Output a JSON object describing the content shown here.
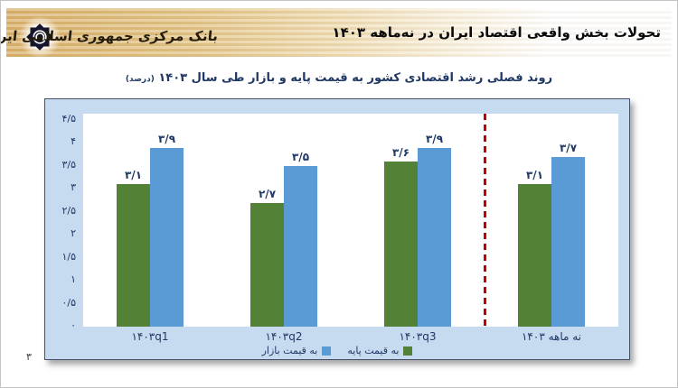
{
  "page": {
    "number": "۳"
  },
  "header": {
    "title": "تحولات بخش واقعی اقتصاد ایران در نه‌ماهه ۱۴۰۳",
    "bank_name": "بانک مرکزی جمهوری اسلامی ایران"
  },
  "chart_data": {
    "type": "bar",
    "title": "روند فصلی رشد اقتصادی کشور به قیمت پایه و بازار طی سال ۱۴۰۳",
    "title_suffix": "(درصد)",
    "categories": [
      "۱۴۰۳q1",
      "۱۴۰۳q2",
      "۱۴۰۳q3",
      "نه ماهه ۱۴۰۳"
    ],
    "series": [
      {
        "name": "به قیمت پایه",
        "color": "#538135",
        "values": [
          3.1,
          2.7,
          3.6,
          3.1
        ],
        "labels": [
          "۳/۱",
          "۲/۷",
          "۳/۶",
          "۳/۱"
        ]
      },
      {
        "name": "به قیمت بازار",
        "color": "#5b9bd5",
        "values": [
          3.9,
          3.5,
          3.9,
          3.7
        ],
        "labels": [
          "۳/۹",
          "۳/۵",
          "۳/۹",
          "۳/۷"
        ]
      }
    ],
    "y_axis": {
      "min": 0,
      "max": 4.5,
      "step": 0.5,
      "tick_labels": [
        "۰",
        "۰/۵",
        "۱",
        "۱/۵",
        "۲",
        "۲/۵",
        "۳",
        "۳/۵",
        "۴",
        "۴/۵"
      ]
    },
    "separator_line": {
      "after_category_index": 2,
      "color": "#c00000",
      "style": "dashed"
    },
    "legend_position": "bottom",
    "grid": false,
    "panel_bg": "#c6daf0",
    "plot_bg": "#ffffff",
    "ylim": [
      0,
      4.5
    ]
  }
}
